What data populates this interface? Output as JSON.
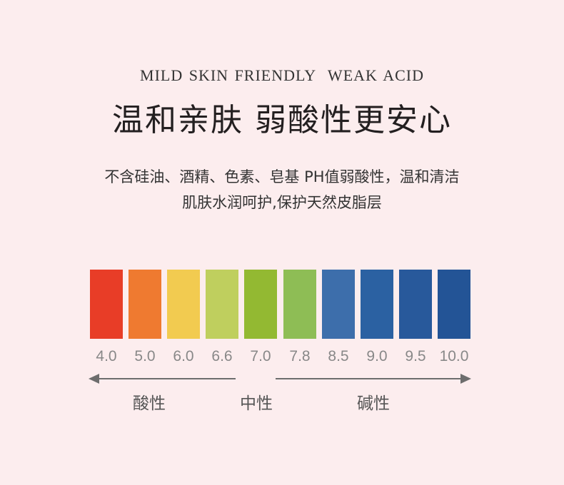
{
  "header": {
    "english_title": "MILD SKIN FRIENDLY  WEAK ACID",
    "chinese_title": "温和亲肤 弱酸性更安心"
  },
  "description": [
    "不含硅油、酒精、色素、皂基 PH值弱酸性，温和清洁",
    "肌肤水润呵护,保护天然皮脂层"
  ],
  "scale": {
    "values": [
      "4.0",
      "5.0",
      "6.0",
      "6.6",
      "7.0",
      "7.8",
      "8.5",
      "9.0",
      "9.5",
      "10.0"
    ],
    "colors": [
      "#e83d27",
      "#ef7a30",
      "#f2cb50",
      "#bfcf5e",
      "#93b932",
      "#8ebd55",
      "#3d6eab",
      "#2b61a2",
      "#28599b",
      "#235496"
    ],
    "labels": {
      "acidic": "酸性",
      "neutral": "中性",
      "alkaline": "碱性"
    },
    "arrow_color": "#6d6d6d"
  }
}
